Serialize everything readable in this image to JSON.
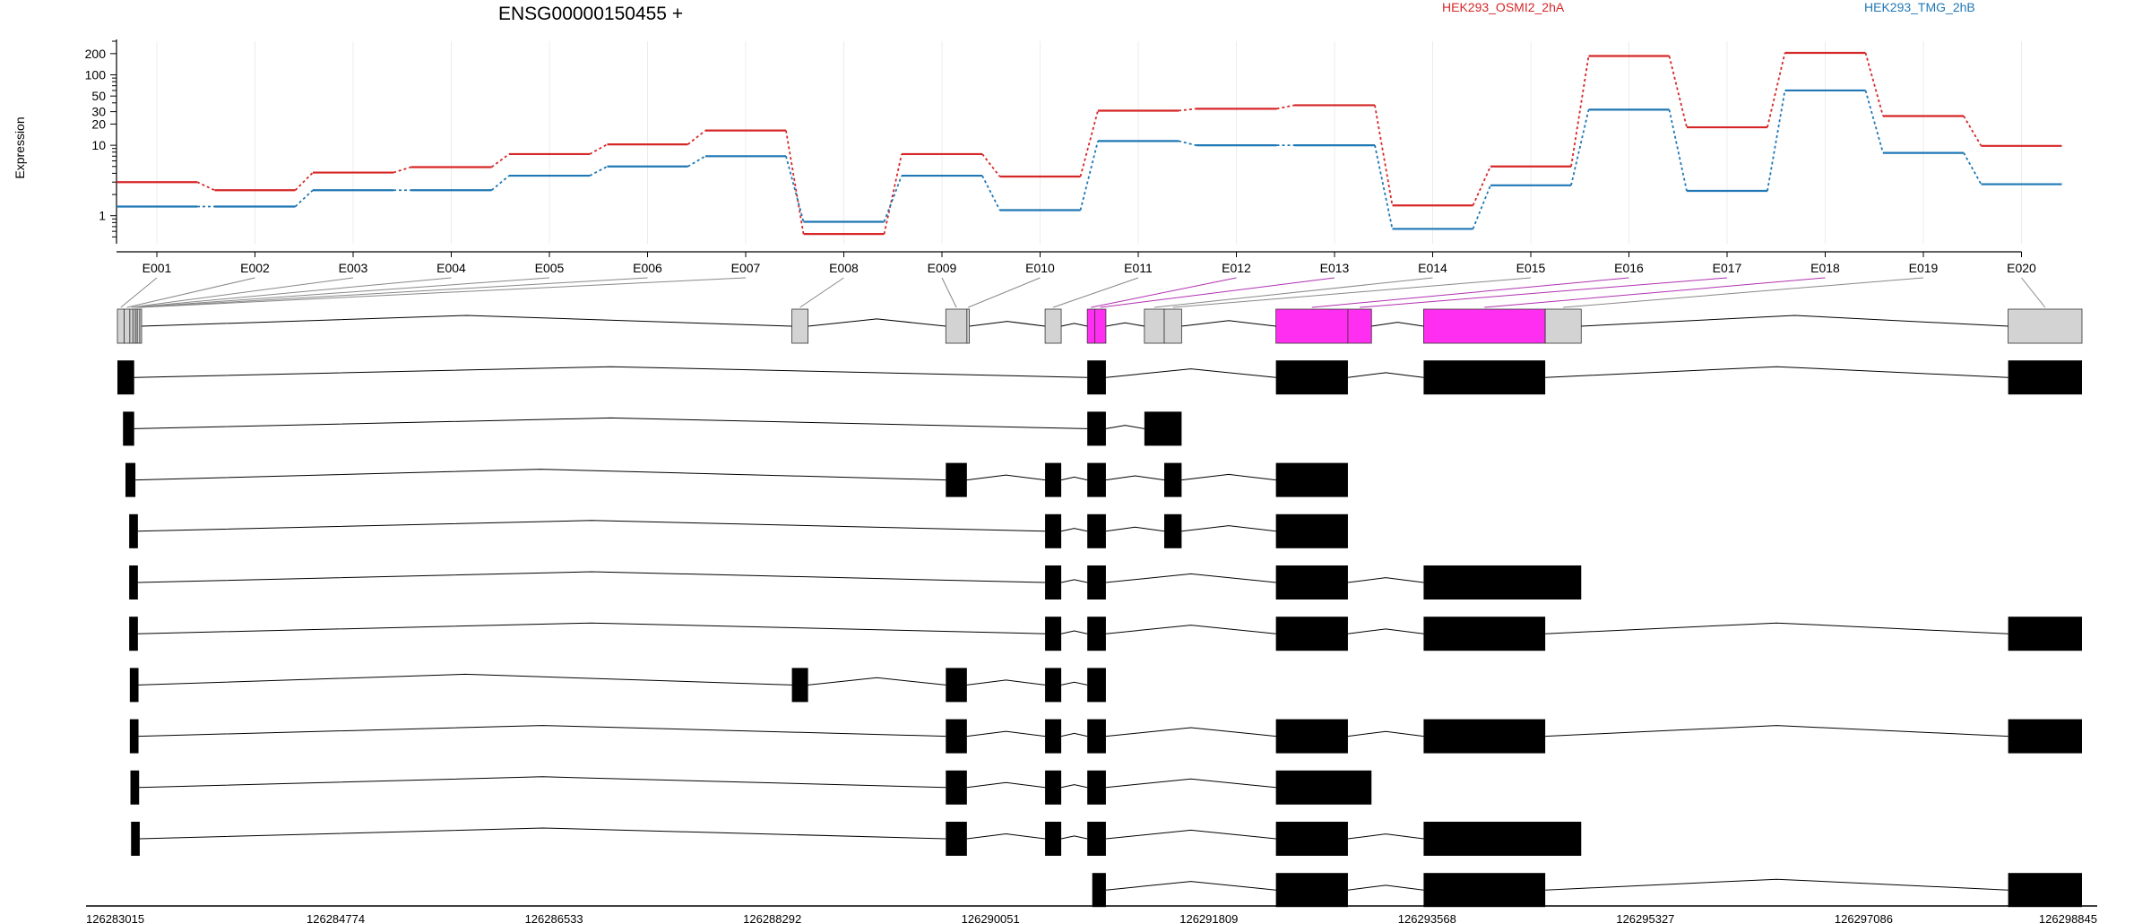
{
  "chart_data": {
    "type": "line",
    "title": "ENSG00000150455 +",
    "ylabel": "Expression",
    "yscale": "log",
    "ylim": [
      0.4,
      300
    ],
    "yticks": [
      1,
      10,
      20,
      30,
      50,
      100,
      200
    ],
    "ytick_labels": [
      "1",
      "10",
      "20",
      "30",
      "50",
      "100",
      "200"
    ],
    "grid": "vertical",
    "legend_placement": "top-right",
    "categories": [
      "E001",
      "E002",
      "E003",
      "E004",
      "E005",
      "E006",
      "E007",
      "E008",
      "E009",
      "E010",
      "E011",
      "E012",
      "E013",
      "E014",
      "E015",
      "E016",
      "E017",
      "E018",
      "E019",
      "E020"
    ],
    "series": [
      {
        "name": "HEK293_OSMI2_2hA",
        "color": "#d62728",
        "values": [
          3.0,
          2.3,
          4.1,
          4.9,
          7.5,
          10.3,
          16.2,
          0.55,
          7.5,
          3.6,
          31,
          33,
          37,
          1.4,
          5,
          185,
          18,
          205,
          26,
          9.8
        ]
      },
      {
        "name": "HEK293_TMG_2hB",
        "color": "#1f77b4",
        "values": [
          1.35,
          1.35,
          2.3,
          2.3,
          3.7,
          5.0,
          7.0,
          0.82,
          3.7,
          1.2,
          11.5,
          10.0,
          10.0,
          0.65,
          2.7,
          32,
          2.25,
          60,
          7.8,
          2.8
        ]
      }
    ],
    "gene_model": {
      "coord_range": [
        126283015,
        126298845
      ],
      "coord_ticks": [
        "126283015",
        "126284774",
        "126286533",
        "126288292",
        "126290051",
        "126291809",
        "126293568",
        "126295327",
        "126297086",
        "126298845"
      ],
      "highlight_color": "#ff2ef0",
      "exon_segments": [
        {
          "start": 126283015,
          "end": 126283070,
          "highlight": false
        },
        {
          "start": 126283070,
          "end": 126283115,
          "highlight": false
        },
        {
          "start": 126283115,
          "end": 126283140,
          "highlight": false
        },
        {
          "start": 126283140,
          "end": 126283160,
          "highlight": false
        },
        {
          "start": 126283160,
          "end": 126283175,
          "highlight": false
        },
        {
          "start": 126283175,
          "end": 126283195,
          "highlight": false
        },
        {
          "start": 126283195,
          "end": 126283210,
          "highlight": false
        },
        {
          "start": 126288450,
          "end": 126288580,
          "highlight": false
        },
        {
          "start": 126289690,
          "end": 126289860,
          "highlight": false
        },
        {
          "start": 126289860,
          "end": 126289880,
          "highlight": false
        },
        {
          "start": 126290490,
          "end": 126290620,
          "highlight": false
        },
        {
          "start": 126290830,
          "end": 126290890,
          "highlight": true
        },
        {
          "start": 126290890,
          "end": 126290980,
          "highlight": true
        },
        {
          "start": 126291290,
          "end": 126291450,
          "highlight": false
        },
        {
          "start": 126291450,
          "end": 126291590,
          "highlight": false
        },
        {
          "start": 126292350,
          "end": 126292930,
          "highlight": true
        },
        {
          "start": 126292930,
          "end": 126293120,
          "highlight": true
        },
        {
          "start": 126293540,
          "end": 126294520,
          "highlight": true
        },
        {
          "start": 126294520,
          "end": 126294810,
          "highlight": false
        },
        {
          "start": 126298250,
          "end": 126298845,
          "highlight": false
        }
      ],
      "transcripts": [
        [
          [
            126283015,
            126283150
          ],
          [
            126290830,
            126290980
          ],
          [
            126292350,
            126292930
          ],
          [
            126293540,
            126294520
          ],
          [
            126298250,
            126298845
          ]
        ],
        [
          [
            126283060,
            126283150
          ],
          [
            126290830,
            126290980
          ],
          [
            126291290,
            126291590
          ]
        ],
        [
          [
            126283080,
            126283160
          ],
          [
            126289690,
            126289860
          ],
          [
            126290490,
            126290620
          ],
          [
            126290830,
            126290980
          ],
          [
            126291450,
            126291590
          ],
          [
            126292350,
            126292930
          ]
        ],
        [
          [
            126283110,
            126283180
          ],
          [
            126290490,
            126290620
          ],
          [
            126290830,
            126290980
          ],
          [
            126291450,
            126291590
          ],
          [
            126292350,
            126292930
          ]
        ],
        [
          [
            126283110,
            126283180
          ],
          [
            126290490,
            126290620
          ],
          [
            126290830,
            126290980
          ],
          [
            126292350,
            126292930
          ],
          [
            126293540,
            126294810
          ]
        ],
        [
          [
            126283110,
            126283180
          ],
          [
            126290490,
            126290620
          ],
          [
            126290830,
            126290980
          ],
          [
            126292350,
            126292930
          ],
          [
            126293540,
            126294520
          ],
          [
            126298250,
            126298845
          ]
        ],
        [
          [
            126283115,
            126283185
          ],
          [
            126288450,
            126288580
          ],
          [
            126289690,
            126289860
          ],
          [
            126290490,
            126290620
          ],
          [
            126290830,
            126290980
          ]
        ],
        [
          [
            126283115,
            126283185
          ],
          [
            126289690,
            126289860
          ],
          [
            126290490,
            126290620
          ],
          [
            126290830,
            126290980
          ],
          [
            126292350,
            126292930
          ],
          [
            126293540,
            126294520
          ],
          [
            126298250,
            126298845
          ]
        ],
        [
          [
            126283120,
            126283190
          ],
          [
            126289690,
            126289860
          ],
          [
            126290490,
            126290620
          ],
          [
            126290830,
            126290980
          ],
          [
            126292350,
            126293120
          ]
        ],
        [
          [
            126283125,
            126283195
          ],
          [
            126289690,
            126289860
          ],
          [
            126290490,
            126290620
          ],
          [
            126290830,
            126290980
          ],
          [
            126292350,
            126292930
          ],
          [
            126293540,
            126294810
          ]
        ],
        [
          [
            126290870,
            126290980
          ],
          [
            126292350,
            126292930
          ],
          [
            126293540,
            126294520
          ],
          [
            126298250,
            126298845
          ]
        ]
      ]
    }
  }
}
